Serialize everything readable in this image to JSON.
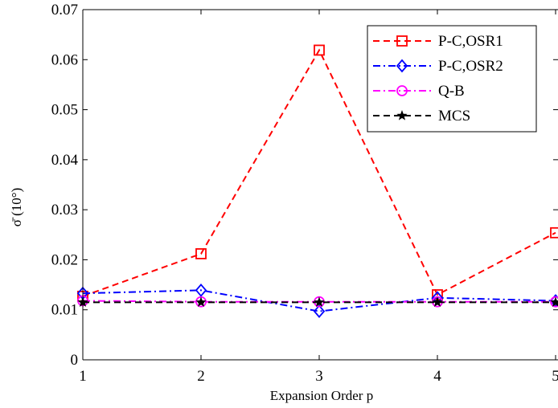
{
  "chart_data": {
    "type": "line",
    "xlabel": "Expansion Order p",
    "ylabel": "σ̄ (10°)",
    "x": [
      1,
      2,
      3,
      4,
      5
    ],
    "xticks": [
      "1",
      "2",
      "3",
      "4",
      "5"
    ],
    "yticks": [
      "0",
      "0.01",
      "0.02",
      "0.03",
      "0.04",
      "0.05",
      "0.06",
      "0.07"
    ],
    "xlim": [
      1,
      5
    ],
    "ylim": [
      0,
      0.07
    ],
    "grid": false,
    "legend_position": "top-right",
    "series": [
      {
        "name": "P-C,OSR1",
        "values": [
          0.0127,
          0.0212,
          0.0619,
          0.013,
          0.0254
        ],
        "color": "#ff0000",
        "dash": "dashed",
        "marker": "square"
      },
      {
        "name": "P-C,OSR2",
        "values": [
          0.0133,
          0.0139,
          0.0097,
          0.0124,
          0.0118
        ],
        "color": "#0000ff",
        "dash": "dashdot",
        "marker": "diamond"
      },
      {
        "name": "Q-B",
        "values": [
          0.0118,
          0.0116,
          0.0116,
          0.0116,
          0.0116
        ],
        "color": "#ff00ff",
        "dash": "dashdot",
        "marker": "circle"
      },
      {
        "name": "MCS",
        "values": [
          0.0115,
          0.0115,
          0.0115,
          0.0115,
          0.0115
        ],
        "color": "#000000",
        "dash": "dashed",
        "marker": "star"
      }
    ]
  }
}
